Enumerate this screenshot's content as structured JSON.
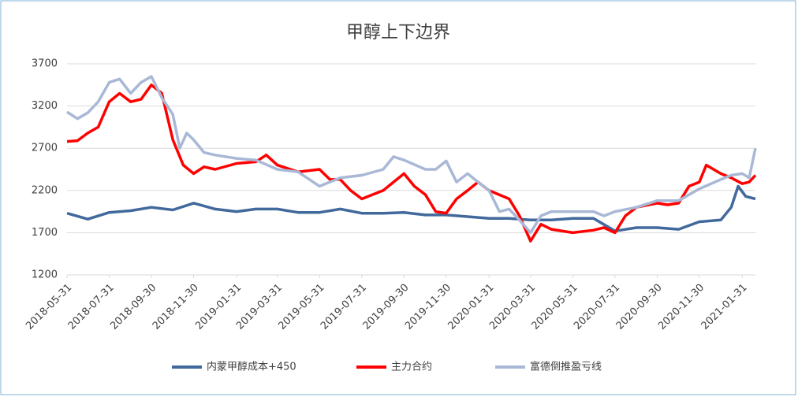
{
  "chart_data": {
    "type": "line",
    "title": "甲醇上下边界",
    "xlim": [
      "2018-05-31",
      "2021-02-19"
    ],
    "xticks": [
      "2018-05-31",
      "2018-07-31",
      "2018-09-30",
      "2018-11-30",
      "2019-01-31",
      "2019-03-31",
      "2019-05-31",
      "2019-07-31",
      "2019-09-30",
      "2019-11-30",
      "2020-01-31",
      "2020-03-31",
      "2020-05-31",
      "2020-07-31",
      "2020-09-30",
      "2020-11-30",
      "2021-01-31"
    ],
    "ylim": [
      1200,
      3700
    ],
    "yticks": [
      1200,
      1700,
      2200,
      2700,
      3200,
      3700
    ],
    "grid": true,
    "legend": "bottom",
    "series": [
      {
        "name": "内蒙甲醇成本+450",
        "color": "#41699c",
        "x": [
          "2018-05-31",
          "2018-06-30",
          "2018-07-31",
          "2018-08-31",
          "2018-09-30",
          "2018-10-31",
          "2018-11-30",
          "2018-12-31",
          "2019-01-31",
          "2019-02-28",
          "2019-03-31",
          "2019-04-30",
          "2019-05-31",
          "2019-06-30",
          "2019-07-31",
          "2019-08-31",
          "2019-09-30",
          "2019-10-31",
          "2019-11-30",
          "2019-12-31",
          "2020-01-31",
          "2020-02-29",
          "2020-03-31",
          "2020-04-30",
          "2020-05-31",
          "2020-06-30",
          "2020-07-31",
          "2020-08-31",
          "2020-09-30",
          "2020-10-31",
          "2020-11-30",
          "2020-12-31",
          "2021-01-15",
          "2021-01-25",
          "2021-02-05",
          "2021-02-19"
        ],
        "values": [
          1930,
          1860,
          1940,
          1960,
          2000,
          1970,
          2050,
          1980,
          1950,
          1980,
          1980,
          1940,
          1940,
          1980,
          1930,
          1930,
          1940,
          1910,
          1910,
          1890,
          1870,
          1870,
          1850,
          1850,
          1870,
          1870,
          1720,
          1760,
          1760,
          1740,
          1830,
          1850,
          2000,
          2250,
          2130,
          2100
        ]
      },
      {
        "name": "主力合约",
        "color": "#ff0000",
        "x": [
          "2018-05-31",
          "2018-06-15",
          "2018-06-30",
          "2018-07-15",
          "2018-07-31",
          "2018-08-15",
          "2018-08-31",
          "2018-09-15",
          "2018-09-30",
          "2018-10-15",
          "2018-10-31",
          "2018-11-15",
          "2018-11-30",
          "2018-12-15",
          "2018-12-31",
          "2019-01-31",
          "2019-02-28",
          "2019-03-15",
          "2019-03-31",
          "2019-04-30",
          "2019-05-31",
          "2019-06-15",
          "2019-06-30",
          "2019-07-15",
          "2019-07-31",
          "2019-08-31",
          "2019-09-15",
          "2019-09-30",
          "2019-10-15",
          "2019-10-31",
          "2019-11-15",
          "2019-11-30",
          "2019-12-15",
          "2019-12-31",
          "2020-01-15",
          "2020-01-31",
          "2020-02-29",
          "2020-03-15",
          "2020-03-31",
          "2020-04-15",
          "2020-04-30",
          "2020-05-31",
          "2020-06-30",
          "2020-07-15",
          "2020-07-31",
          "2020-08-15",
          "2020-08-31",
          "2020-09-30",
          "2020-10-15",
          "2020-10-31",
          "2020-11-15",
          "2020-11-30",
          "2020-12-10",
          "2020-12-31",
          "2021-01-15",
          "2021-01-31",
          "2021-02-10",
          "2021-02-19"
        ],
        "values": [
          2780,
          2790,
          2880,
          2950,
          3250,
          3350,
          3250,
          3280,
          3450,
          3350,
          2800,
          2500,
          2400,
          2480,
          2450,
          2520,
          2540,
          2620,
          2500,
          2420,
          2450,
          2330,
          2330,
          2200,
          2100,
          2200,
          2300,
          2400,
          2250,
          2150,
          1950,
          1930,
          2100,
          2200,
          2300,
          2200,
          2100,
          1900,
          1600,
          1800,
          1740,
          1700,
          1730,
          1760,
          1700,
          1900,
          2000,
          2050,
          2030,
          2050,
          2250,
          2300,
          2500,
          2400,
          2350,
          2280,
          2300,
          2380
        ]
      },
      {
        "name": "富德倒推盈亏线",
        "color": "#a9b8d6",
        "x": [
          "2018-05-31",
          "2018-06-15",
          "2018-06-30",
          "2018-07-15",
          "2018-07-31",
          "2018-08-15",
          "2018-08-31",
          "2018-09-15",
          "2018-09-30",
          "2018-10-15",
          "2018-10-31",
          "2018-11-10",
          "2018-11-20",
          "2018-11-30",
          "2018-12-15",
          "2018-12-31",
          "2019-01-31",
          "2019-02-28",
          "2019-03-31",
          "2019-04-30",
          "2019-05-31",
          "2019-06-30",
          "2019-07-31",
          "2019-08-31",
          "2019-09-15",
          "2019-09-30",
          "2019-10-31",
          "2019-11-15",
          "2019-11-30",
          "2019-12-15",
          "2019-12-31",
          "2020-01-15",
          "2020-01-31",
          "2020-02-15",
          "2020-02-29",
          "2020-03-15",
          "2020-03-31",
          "2020-04-15",
          "2020-04-30",
          "2020-05-31",
          "2020-06-30",
          "2020-07-15",
          "2020-07-31",
          "2020-08-31",
          "2020-09-30",
          "2020-10-31",
          "2020-11-30",
          "2020-12-31",
          "2021-01-15",
          "2021-01-31",
          "2021-02-10",
          "2021-02-19"
        ],
        "values": [
          3130,
          3050,
          3120,
          3250,
          3480,
          3520,
          3350,
          3480,
          3550,
          3300,
          3100,
          2700,
          2880,
          2800,
          2650,
          2620,
          2580,
          2560,
          2450,
          2420,
          2250,
          2350,
          2380,
          2450,
          2600,
          2560,
          2450,
          2450,
          2550,
          2300,
          2400,
          2300,
          2200,
          1950,
          1980,
          1850,
          1700,
          1900,
          1950,
          1950,
          1950,
          1900,
          1950,
          2000,
          2080,
          2080,
          2220,
          2330,
          2380,
          2400,
          2350,
          2700
        ]
      }
    ]
  }
}
